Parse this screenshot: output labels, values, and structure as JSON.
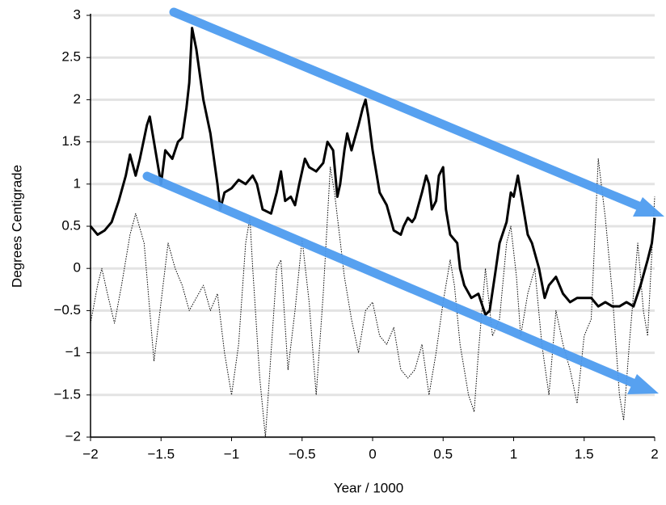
{
  "chart_data": {
    "type": "line",
    "xlabel": "Year / 1000",
    "ylabel": "Degrees Centigrade",
    "xlim": [
      -2,
      2
    ],
    "ylim": [
      -2,
      3
    ],
    "xticks": [
      {
        "value": -2,
        "label": "−2"
      },
      {
        "value": -1.5,
        "label": "−1.5"
      },
      {
        "value": -1,
        "label": "−1"
      },
      {
        "value": -0.5,
        "label": "−0.5"
      },
      0,
      0.5,
      1,
      1.5,
      2
    ],
    "yticks": [
      {
        "value": -2,
        "label": "−2"
      },
      {
        "value": -1.5,
        "label": "−1.5"
      },
      {
        "value": -1,
        "label": "−1"
      },
      {
        "value": -0.5,
        "label": "−0.5"
      },
      0,
      0.5,
      1,
      1.5,
      2,
      2.5,
      3
    ],
    "grid": true,
    "series": [
      {
        "color": "#000000",
        "line_style": "solid",
        "x": [
          -2,
          -1.95,
          -1.9,
          -1.85,
          -1.8,
          -1.75,
          -1.72,
          -1.68,
          -1.65,
          -1.6,
          -1.58,
          -1.55,
          -1.5,
          -1.47,
          -1.42,
          -1.38,
          -1.35,
          -1.32,
          -1.3,
          -1.28,
          -1.25,
          -1.2,
          -1.15,
          -1.1,
          -1.08,
          -1.05,
          -1.0,
          -0.95,
          -0.9,
          -0.85,
          -0.82,
          -0.78,
          -0.72,
          -0.68,
          -0.65,
          -0.62,
          -0.58,
          -0.55,
          -0.52,
          -0.48,
          -0.45,
          -0.4,
          -0.35,
          -0.32,
          -0.28,
          -0.25,
          -0.23,
          -0.2,
          -0.18,
          -0.15,
          -0.1,
          -0.07,
          -0.05,
          -0.03,
          0.0,
          0.05,
          0.1,
          0.15,
          0.2,
          0.22,
          0.25,
          0.28,
          0.3,
          0.35,
          0.38,
          0.4,
          0.42,
          0.45,
          0.47,
          0.5,
          0.52,
          0.55,
          0.6,
          0.62,
          0.65,
          0.7,
          0.75,
          0.8,
          0.83,
          0.87,
          0.9,
          0.95,
          0.98,
          1.0,
          1.03,
          1.05,
          1.1,
          1.13,
          1.18,
          1.22,
          1.25,
          1.3,
          1.35,
          1.4,
          1.45,
          1.5,
          1.55,
          1.6,
          1.65,
          1.7,
          1.75,
          1.8,
          1.85,
          1.9,
          1.95,
          1.98,
          2.0
        ],
        "values": [
          0.5,
          0.4,
          0.45,
          0.55,
          0.8,
          1.1,
          1.35,
          1.1,
          1.3,
          1.7,
          1.8,
          1.5,
          1.0,
          1.4,
          1.3,
          1.5,
          1.55,
          1.9,
          2.2,
          2.85,
          2.6,
          2.0,
          1.6,
          1.0,
          0.7,
          0.9,
          0.95,
          1.05,
          1.0,
          1.1,
          1.0,
          0.7,
          0.65,
          0.9,
          1.15,
          0.8,
          0.85,
          0.75,
          1.0,
          1.3,
          1.2,
          1.15,
          1.25,
          1.5,
          1.4,
          0.85,
          1.0,
          1.4,
          1.6,
          1.4,
          1.7,
          1.9,
          2.0,
          1.8,
          1.4,
          0.9,
          0.75,
          0.45,
          0.4,
          0.5,
          0.6,
          0.55,
          0.6,
          0.9,
          1.1,
          1.0,
          0.7,
          0.8,
          1.1,
          1.2,
          0.7,
          0.4,
          0.3,
          0.0,
          -0.2,
          -0.35,
          -0.3,
          -0.55,
          -0.5,
          -0.05,
          0.3,
          0.55,
          0.9,
          0.85,
          1.1,
          0.9,
          0.4,
          0.3,
          0.0,
          -0.35,
          -0.2,
          -0.1,
          -0.3,
          -0.4,
          -0.35,
          -0.35,
          -0.35,
          -0.45,
          -0.4,
          -0.45,
          -0.45,
          -0.4,
          -0.45,
          -0.2,
          0.1,
          0.3,
          0.6
        ]
      },
      {
        "color": "#000000",
        "line_style": "dotted",
        "x": [
          -2,
          -1.95,
          -1.92,
          -1.88,
          -1.83,
          -1.78,
          -1.72,
          -1.68,
          -1.62,
          -1.58,
          -1.55,
          -1.5,
          -1.45,
          -1.4,
          -1.35,
          -1.3,
          -1.25,
          -1.2,
          -1.15,
          -1.1,
          -1.05,
          -1.0,
          -0.95,
          -0.9,
          -0.87,
          -0.85,
          -0.8,
          -0.76,
          -0.72,
          -0.68,
          -0.65,
          -0.6,
          -0.55,
          -0.5,
          -0.45,
          -0.4,
          -0.35,
          -0.3,
          -0.27,
          -0.2,
          -0.15,
          -0.1,
          -0.05,
          0.0,
          0.05,
          0.1,
          0.15,
          0.2,
          0.25,
          0.3,
          0.35,
          0.4,
          0.45,
          0.5,
          0.55,
          0.58,
          0.62,
          0.68,
          0.72,
          0.75,
          0.8,
          0.85,
          0.9,
          0.95,
          0.98,
          1.02,
          1.05,
          1.1,
          1.15,
          1.2,
          1.25,
          1.3,
          1.35,
          1.4,
          1.45,
          1.5,
          1.55,
          1.6,
          1.65,
          1.7,
          1.75,
          1.78,
          1.82,
          1.88,
          1.92,
          1.95,
          2.0
        ],
        "values": [
          -0.65,
          -0.2,
          0.0,
          -0.3,
          -0.65,
          -0.2,
          0.4,
          0.65,
          0.3,
          -0.5,
          -1.1,
          -0.4,
          0.3,
          0.0,
          -0.2,
          -0.5,
          -0.35,
          -0.2,
          -0.5,
          -0.3,
          -1.0,
          -1.5,
          -0.9,
          0.3,
          0.6,
          0.0,
          -1.3,
          -2.0,
          -1.0,
          0.0,
          0.1,
          -1.2,
          -0.5,
          0.35,
          -0.4,
          -1.5,
          -0.3,
          1.2,
          0.9,
          -0.1,
          -0.6,
          -1.0,
          -0.5,
          -0.4,
          -0.8,
          -0.9,
          -0.7,
          -1.2,
          -1.3,
          -1.2,
          -0.9,
          -1.5,
          -1.0,
          -0.4,
          0.1,
          -0.2,
          -0.9,
          -1.5,
          -1.7,
          -1.0,
          0.0,
          -0.8,
          -0.6,
          0.3,
          0.5,
          -0.1,
          -0.8,
          -0.3,
          0.0,
          -0.9,
          -1.5,
          -0.5,
          -0.9,
          -1.2,
          -1.6,
          -0.8,
          -0.6,
          1.3,
          0.6,
          -0.3,
          -1.5,
          -1.8,
          -0.9,
          0.3,
          -0.5,
          -0.8,
          0.85
        ]
      }
    ]
  }
}
